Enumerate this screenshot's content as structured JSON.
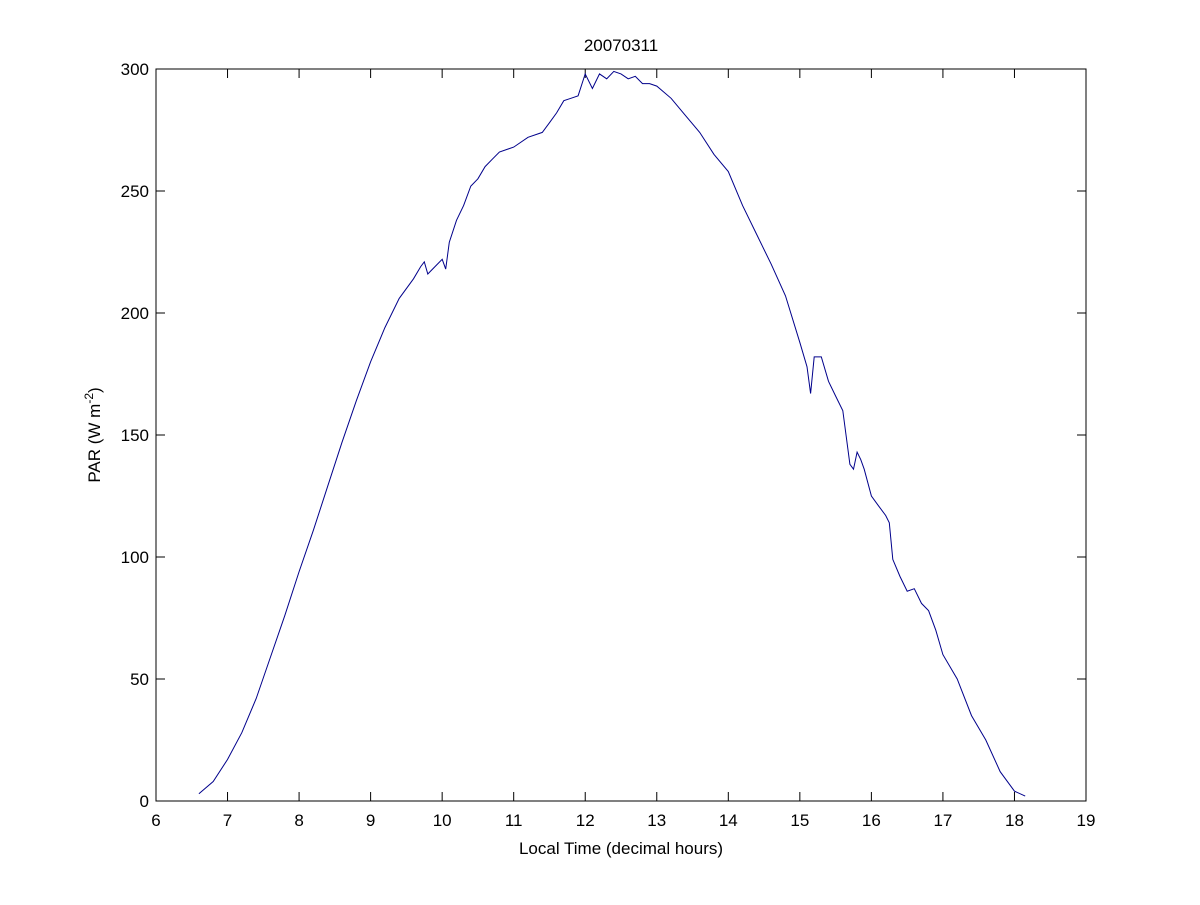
{
  "chart_data": {
    "type": "line",
    "title": "20070311",
    "xlabel": "Local Time (decimal hours)",
    "ylabel_main": "PAR (W m",
    "ylabel_sup": "-2",
    "ylabel_close": ")",
    "xlim": [
      6,
      19
    ],
    "ylim": [
      0,
      300
    ],
    "xticks": [
      "6",
      "7",
      "8",
      "9",
      "10",
      "11",
      "12",
      "13",
      "14",
      "15",
      "16",
      "17",
      "18",
      "19"
    ],
    "yticks": [
      "0",
      "50",
      "100",
      "150",
      "200",
      "250",
      "300"
    ],
    "grid": false,
    "legend": "none",
    "line_color": "#00008b",
    "series": [
      {
        "x": [
          6.6,
          6.8,
          7.0,
          7.2,
          7.4,
          7.6,
          7.8,
          8.0,
          8.2,
          8.4,
          8.6,
          8.8,
          9.0,
          9.2,
          9.4,
          9.6,
          9.7,
          9.75,
          9.8,
          9.9,
          10.0,
          10.05,
          10.1,
          10.2,
          10.3,
          10.4,
          10.5,
          10.6,
          10.7,
          10.8,
          11.0,
          11.2,
          11.4,
          11.5,
          11.6,
          11.7,
          11.8,
          11.9,
          12.0,
          12.1,
          12.2,
          12.3,
          12.4,
          12.5,
          12.6,
          12.7,
          12.8,
          12.9,
          13.0,
          13.2,
          13.4,
          13.6,
          13.8,
          14.0,
          14.2,
          14.4,
          14.6,
          14.8,
          15.0,
          15.1,
          15.15,
          15.2,
          15.3,
          15.4,
          15.5,
          15.6,
          15.7,
          15.75,
          15.8,
          15.85,
          15.9,
          16.0,
          16.1,
          16.2,
          16.25,
          16.3,
          16.4,
          16.5,
          16.6,
          16.7,
          16.8,
          16.9,
          17.0,
          17.2,
          17.4,
          17.6,
          17.8,
          18.0,
          18.15
        ],
        "y": [
          3,
          8,
          17,
          28,
          42,
          59,
          76,
          94,
          111,
          129,
          147,
          164,
          180,
          194,
          206,
          214,
          219,
          221,
          216,
          219,
          222,
          218,
          229,
          238,
          244,
          252,
          255,
          260,
          263,
          266,
          268,
          272,
          274,
          278,
          282,
          287,
          288,
          289,
          298,
          292,
          298,
          296,
          299,
          298,
          296,
          297,
          294,
          294,
          293,
          288,
          281,
          274,
          265,
          258,
          244,
          232,
          220,
          207,
          188,
          178,
          167,
          182,
          182,
          172,
          166,
          160,
          138,
          136,
          143,
          140,
          136,
          125,
          121,
          117,
          114,
          99,
          92,
          86,
          87,
          81,
          78,
          70,
          60,
          50,
          35,
          25,
          12,
          4,
          2
        ]
      }
    ]
  }
}
